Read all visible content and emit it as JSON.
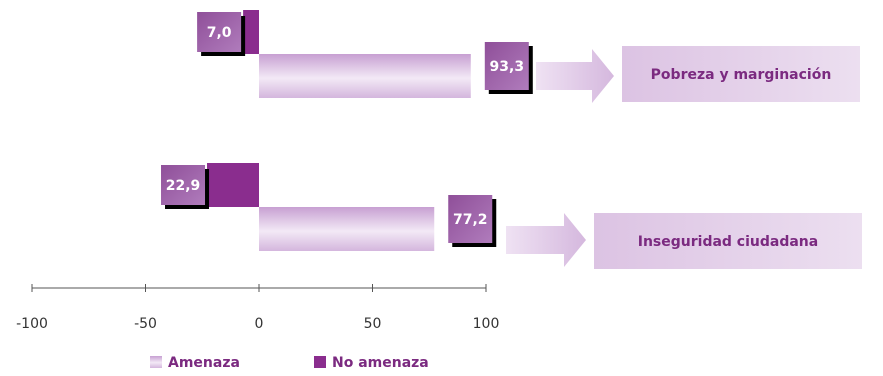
{
  "chart_data": {
    "type": "bar",
    "orientation": "horizontal",
    "categories": [
      "Pobreza y marginación",
      "Inseguridad ciudadana"
    ],
    "series": [
      {
        "name": "Amenaza",
        "values": [
          93.3,
          77.2
        ],
        "labels": [
          "93,3",
          "77,2"
        ],
        "color": "#c9a4d3"
      },
      {
        "name": "No amenaza",
        "values": [
          -7.0,
          -22.9
        ],
        "labels": [
          "7,0",
          "22,9"
        ],
        "color": "#8a2d8e"
      }
    ],
    "xlim": [
      -100,
      100
    ],
    "x_ticks": [
      -100,
      -50,
      0,
      50,
      100
    ],
    "x_tick_labels": [
      "-100",
      "-50",
      "0",
      "50",
      "100"
    ],
    "grid": false,
    "legend_position": "bottom-left"
  }
}
